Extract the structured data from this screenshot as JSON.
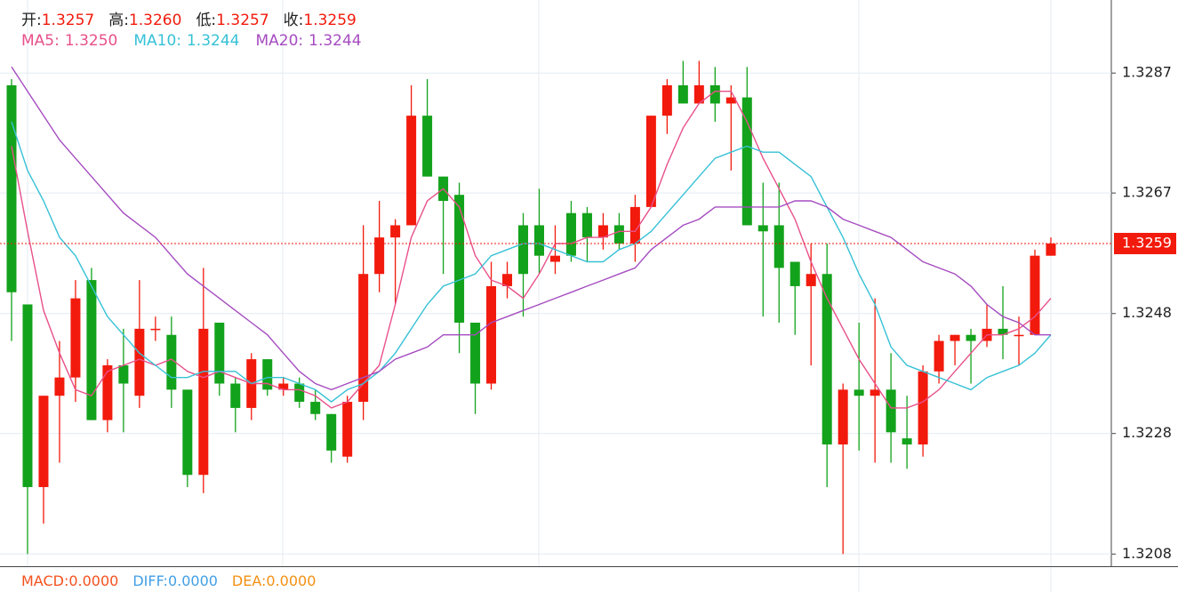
{
  "chart_data": {
    "type": "candlestick",
    "summary": [
      {
        "label": "开:",
        "value": 1.3257
      },
      {
        "label": "高:",
        "value": 1.326,
        "value_label": "1.3260"
      },
      {
        "label": "低:",
        "value": 1.3257
      },
      {
        "label": "收:",
        "value": 1.3259
      }
    ],
    "up_color": "#f21a0c",
    "down_color": "#13a21b",
    "open": [
      1.3285,
      1.3249,
      1.3219,
      1.3234,
      1.3237,
      1.3253,
      1.323,
      1.3239,
      1.3234,
      1.3245,
      1.3244,
      1.3235,
      1.3221,
      1.3246,
      1.3236,
      1.3232,
      1.324,
      1.3235,
      1.3236,
      1.3233,
      1.3231,
      1.3224,
      1.3233,
      1.3254,
      1.326,
      1.3262,
      1.328,
      1.327,
      1.3267,
      1.3246,
      1.3236,
      1.3252,
      1.3262,
      1.3262,
      1.3256,
      1.3264,
      1.3264,
      1.326,
      1.3262,
      1.3259,
      1.3265,
      1.328,
      1.3285,
      1.3282,
      1.3285,
      1.3282,
      1.3283,
      1.3262,
      1.3262,
      1.3256,
      1.3252,
      1.3254,
      1.3226,
      1.3235,
      1.3234,
      1.3235,
      1.3227,
      1.3226,
      1.3238,
      1.3243,
      1.3244,
      1.3243,
      1.3245,
      1.3244,
      1.3244,
      1.3257
    ],
    "high": [
      1.3286,
      1.3249,
      1.3234,
      1.3243,
      1.3253,
      1.3255,
      1.324,
      1.3245,
      1.3253,
      1.3247,
      1.3247,
      1.3235,
      1.3255,
      1.3246,
      1.3237,
      1.3241,
      1.324,
      1.3237,
      1.3237,
      1.3235,
      1.3231,
      1.3234,
      1.3262,
      1.3266,
      1.3263,
      1.3285,
      1.3286,
      1.327,
      1.3269,
      1.3246,
      1.3256,
      1.3256,
      1.3264,
      1.3268,
      1.3262,
      1.3266,
      1.3265,
      1.3264,
      1.3264,
      1.3267,
      1.328,
      1.3286,
      1.3289,
      1.3289,
      1.3288,
      1.3285,
      1.3288,
      1.3269,
      1.3269,
      1.3256,
      1.3259,
      1.3259,
      1.3236,
      1.3246,
      1.325,
      1.3241,
      1.3234,
      1.3239,
      1.3244,
      1.3244,
      1.3245,
      1.3249,
      1.3252,
      1.3247,
      1.3258,
      1.326
    ],
    "low": [
      1.3243,
      1.3208,
      1.3213,
      1.3223,
      1.3233,
      1.323,
      1.3228,
      1.3228,
      1.3232,
      1.3243,
      1.3232,
      1.3219,
      1.3218,
      1.3234,
      1.3228,
      1.323,
      1.3234,
      1.3234,
      1.3232,
      1.323,
      1.3223,
      1.3223,
      1.323,
      1.3251,
      1.3249,
      1.3262,
      1.327,
      1.3254,
      1.3241,
      1.3231,
      1.3235,
      1.325,
      1.3247,
      1.3254,
      1.3254,
      1.3256,
      1.3256,
      1.3258,
      1.3258,
      1.3256,
      1.3265,
      1.3277,
      1.3282,
      1.3282,
      1.3279,
      1.3271,
      1.3262,
      1.3247,
      1.3246,
      1.3244,
      1.3239,
      1.3219,
      1.3208,
      1.3225,
      1.3223,
      1.3223,
      1.3222,
      1.3224,
      1.3236,
      1.3239,
      1.3236,
      1.3242,
      1.324,
      1.3239,
      1.3244,
      1.3257
    ],
    "close": [
      1.3251,
      1.3219,
      1.3234,
      1.3237,
      1.325,
      1.323,
      1.3239,
      1.3236,
      1.3245,
      1.3245,
      1.3235,
      1.3221,
      1.3245,
      1.3236,
      1.3232,
      1.324,
      1.3235,
      1.3236,
      1.3233,
      1.3231,
      1.3225,
      1.3233,
      1.3254,
      1.326,
      1.3262,
      1.328,
      1.327,
      1.3266,
      1.3246,
      1.3236,
      1.3252,
      1.3254,
      1.3254,
      1.3257,
      1.3257,
      1.3257,
      1.326,
      1.3262,
      1.3259,
      1.3265,
      1.328,
      1.3285,
      1.3282,
      1.3285,
      1.3282,
      1.3283,
      1.3262,
      1.3261,
      1.3255,
      1.3252,
      1.3254,
      1.3226,
      1.3235,
      1.3234,
      1.3235,
      1.3228,
      1.3226,
      1.3238,
      1.3243,
      1.3244,
      1.3243,
      1.3245,
      1.3244,
      1.3244,
      1.3257,
      1.3259
    ],
    "series": [
      {
        "name": "MA5:",
        "color": "#e8508a",
        "last_label": "1.3250",
        "values": [
          1.3275,
          1.3261,
          1.3248,
          1.3241,
          1.3235,
          1.3234,
          1.3238,
          1.3239,
          1.324,
          1.3239,
          1.324,
          1.3238,
          1.3237,
          1.3238,
          1.3237,
          1.3236,
          1.3236,
          1.3235,
          1.3235,
          1.3234,
          1.3232,
          1.3233,
          1.3236,
          1.3239,
          1.3249,
          1.326,
          1.3266,
          1.3268,
          1.3265,
          1.3257,
          1.3253,
          1.3252,
          1.325,
          1.3254,
          1.3259,
          1.3259,
          1.326,
          1.326,
          1.3261,
          1.3261,
          1.3265,
          1.3272,
          1.3278,
          1.3282,
          1.3284,
          1.3284,
          1.3279,
          1.3273,
          1.3268,
          1.3263,
          1.3256,
          1.325,
          1.3245,
          1.324,
          1.3236,
          1.3232,
          1.3232,
          1.3233,
          1.3235,
          1.3238,
          1.3241,
          1.3244,
          1.3244,
          1.3245,
          1.3247,
          1.325
        ]
      },
      {
        "name": "MA10:",
        "color": "#36c1d6",
        "last_label": "1.3244",
        "values": [
          1.3279,
          1.3271,
          1.3266,
          1.326,
          1.3257,
          1.3252,
          1.3247,
          1.3244,
          1.3241,
          1.3239,
          1.3237,
          1.3237,
          1.3238,
          1.3238,
          1.3238,
          1.3236,
          1.3237,
          1.3237,
          1.3236,
          1.3235,
          1.3233,
          1.3235,
          1.3236,
          1.3238,
          1.3241,
          1.3245,
          1.3249,
          1.3252,
          1.3253,
          1.3254,
          1.3257,
          1.3258,
          1.3259,
          1.3259,
          1.3258,
          1.3257,
          1.3256,
          1.3256,
          1.3258,
          1.3259,
          1.3261,
          1.3264,
          1.3267,
          1.327,
          1.3273,
          1.3274,
          1.3275,
          1.3274,
          1.3274,
          1.3272,
          1.327,
          1.3265,
          1.326,
          1.3254,
          1.3249,
          1.3242,
          1.3239,
          1.3238,
          1.3237,
          1.3236,
          1.3235,
          1.3237,
          1.3238,
          1.3239,
          1.3241,
          1.3244
        ]
      },
      {
        "name": "MA20:",
        "color": "#a54cc0",
        "last_label": "1.3244",
        "values": [
          1.3288,
          1.3284,
          1.328,
          1.3276,
          1.3273,
          1.327,
          1.3267,
          1.3264,
          1.3262,
          1.326,
          1.3257,
          1.3254,
          1.3252,
          1.325,
          1.3248,
          1.3246,
          1.3244,
          1.3241,
          1.3238,
          1.3236,
          1.3235,
          1.3236,
          1.3237,
          1.3238,
          1.324,
          1.3241,
          1.3242,
          1.3244,
          1.3244,
          1.3244,
          1.3246,
          1.3247,
          1.3248,
          1.3249,
          1.325,
          1.3251,
          1.3252,
          1.3253,
          1.3254,
          1.3255,
          1.3258,
          1.326,
          1.3262,
          1.3263,
          1.3265,
          1.3265,
          1.3265,
          1.3265,
          1.3265,
          1.3266,
          1.3266,
          1.3265,
          1.3263,
          1.3262,
          1.3261,
          1.326,
          1.3258,
          1.3256,
          1.3255,
          1.3254,
          1.3252,
          1.3249,
          1.3247,
          1.3246,
          1.3244,
          1.3244
        ]
      }
    ],
    "last_price": 1.3259,
    "last_price_color": "#f21a0c",
    "ylim": [
      1.3206,
      1.3299
    ],
    "yticks": [
      1.3208,
      {
        "value": 1.32278,
        "label": "1.3228"
      },
      {
        "value": 1.32475,
        "label": "1.3248"
      },
      {
        "value": 1.32673,
        "label": "1.3267"
      },
      1.3287
    ],
    "grid": true,
    "macd": [
      {
        "name": "MACD:",
        "value": 0,
        "value_label": "0.0000",
        "color": "#f4511e"
      },
      {
        "name": "DIFF:",
        "value": 0,
        "value_label": "0.0000",
        "color": "#42a0e6"
      },
      {
        "name": "DEA:",
        "value": 0,
        "value_label": "0.0000",
        "color": "#f39012"
      }
    ]
  }
}
